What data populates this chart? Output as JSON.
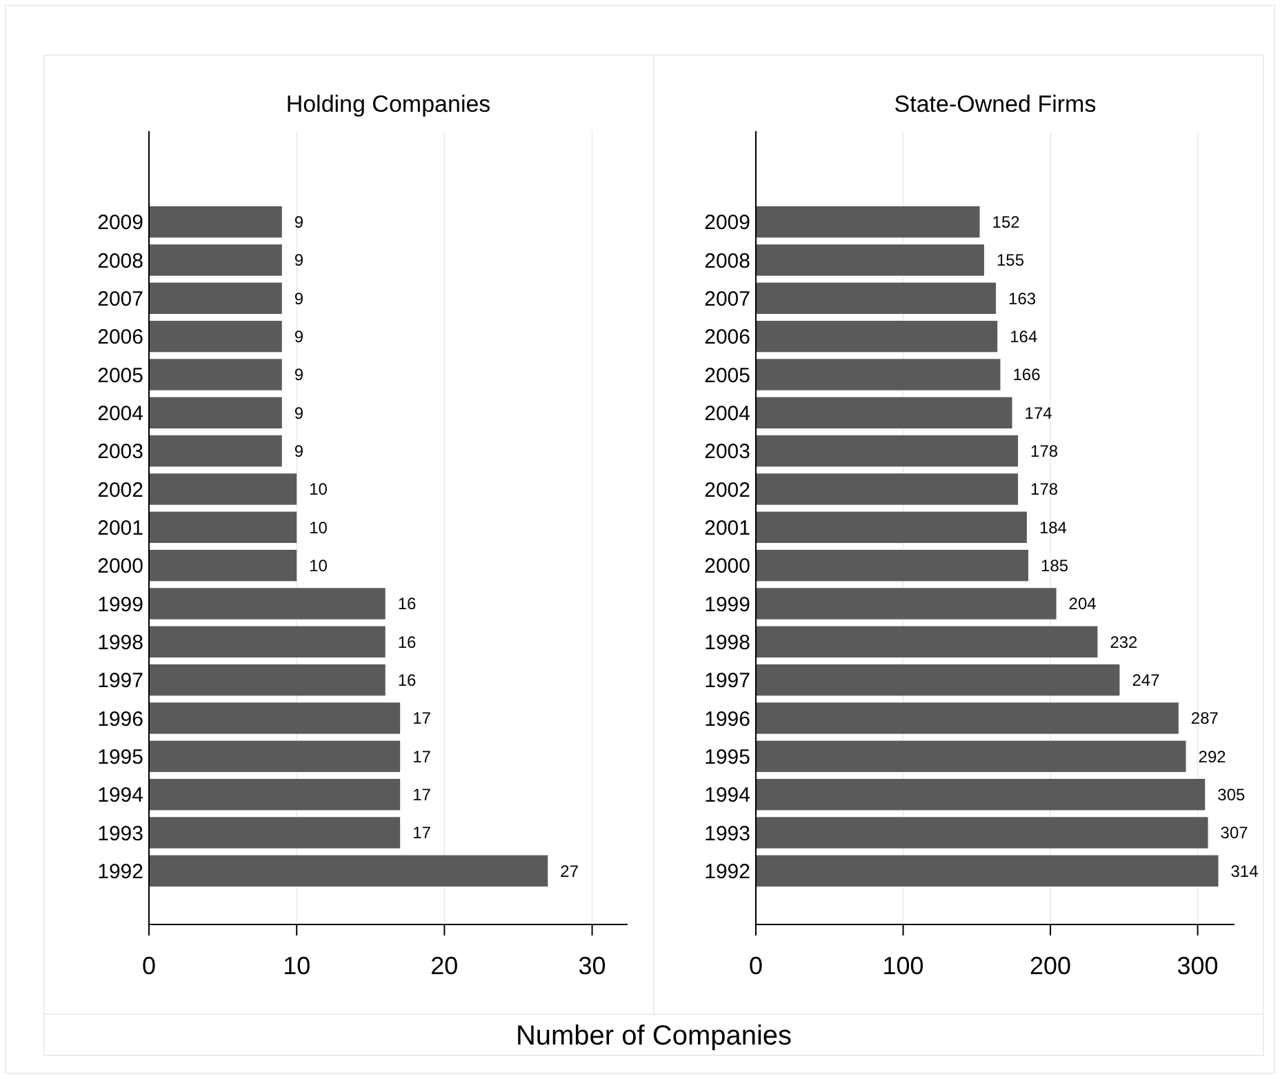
{
  "chart_data": [
    {
      "type": "bar",
      "orientation": "horizontal",
      "title": "Holding Companies",
      "xlabel": "Number of Companies",
      "categories": [
        "2009",
        "2008",
        "2007",
        "2006",
        "2005",
        "2004",
        "2003",
        "2002",
        "2001",
        "2000",
        "1999",
        "1998",
        "1997",
        "1996",
        "1995",
        "1994",
        "1993",
        "1992"
      ],
      "values": [
        9,
        9,
        9,
        9,
        9,
        9,
        9,
        10,
        10,
        10,
        16,
        16,
        16,
        17,
        17,
        17,
        17,
        27
      ],
      "color": "#5a5a5a",
      "xlim": [
        0,
        32.4
      ],
      "xticks": [
        0,
        10,
        20,
        30
      ],
      "grid": "x",
      "data_labels": true
    },
    {
      "type": "bar",
      "orientation": "horizontal",
      "title": "State-Owned Firms",
      "categories": [
        "2009",
        "2008",
        "2007",
        "2006",
        "2005",
        "2004",
        "2003",
        "2002",
        "2001",
        "2000",
        "1999",
        "1998",
        "1997",
        "1996",
        "1995",
        "1994",
        "1993",
        "1992"
      ],
      "values": [
        152,
        155,
        163,
        164,
        166,
        174,
        178,
        178,
        184,
        185,
        204,
        232,
        247,
        287,
        292,
        305,
        307,
        314
      ],
      "color": "#5a5a5a",
      "xlim": [
        0,
        325
      ],
      "xticks": [
        0,
        100,
        200,
        300
      ],
      "grid": "x",
      "data_labels": true
    }
  ]
}
